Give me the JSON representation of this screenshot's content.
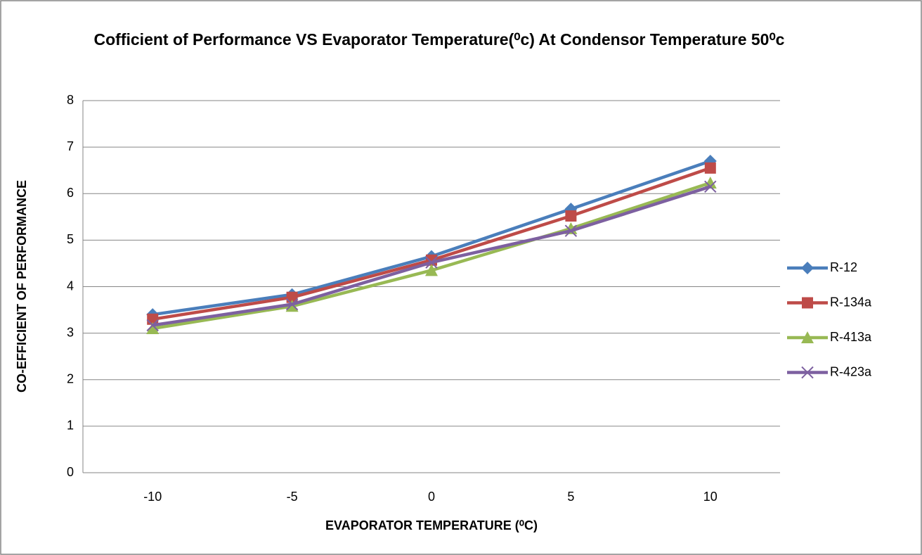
{
  "chart_data": {
    "type": "line",
    "title": "Cofficient of Performance VS Evaporator Temperature(⁰c) At Condensor Temperature 50⁰c",
    "x_label": "EVAPORATOR TEMPERATURE (⁰C)",
    "y_label": "CO-EFFICIENT OF PERFORMANCE",
    "categories": [
      "-10",
      "-5",
      "0",
      "5",
      "10"
    ],
    "series": [
      {
        "name": "R-12",
        "color": "#4a7ebb",
        "marker": "diamond",
        "values": [
          3.4,
          3.83,
          4.65,
          5.67,
          6.7
        ]
      },
      {
        "name": "R-134a",
        "color": "#be4b48",
        "marker": "square",
        "values": [
          3.3,
          3.77,
          4.57,
          5.52,
          6.55
        ]
      },
      {
        "name": "R-413a",
        "color": "#98b954",
        "marker": "triangle",
        "values": [
          3.1,
          3.58,
          4.35,
          5.25,
          6.23
        ]
      },
      {
        "name": "R-423a",
        "color": "#7d60a0",
        "marker": "x",
        "values": [
          3.17,
          3.62,
          4.52,
          5.2,
          6.15
        ]
      }
    ],
    "ylim": [
      0,
      8
    ],
    "yticks": [
      0,
      1,
      2,
      3,
      4,
      5,
      6,
      7,
      8
    ],
    "grid": true,
    "legend": "right"
  }
}
